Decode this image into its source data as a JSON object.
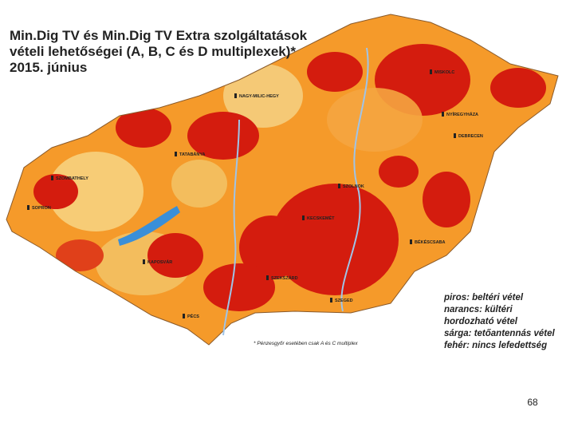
{
  "title": {
    "lines": [
      "Min.Dig TV és Min.Dig TV Extra szolgáltatások",
      "vételi lehetőségei (A, B, C és D multiplexek)*",
      "2015. június"
    ]
  },
  "cities": [
    "NAGY-MILIC-HEGY",
    "MISKOLC",
    "NYÍREGYHÁZA",
    "DEBRECEN",
    "SZOLNOK",
    "KECSKEMÉT",
    "SZEGED",
    "BÉKÉSCSABA",
    "SZOMBATHELY",
    "KAPOSVÁR",
    "PÉCS",
    "SOPRON",
    "TATABÁNYA",
    "SZEKSZÁRD"
  ],
  "legend": [
    "piros: beltéri vétel",
    "narancs: kültéri",
    "hordozható vétel",
    "sárga: tetőantennás vétel",
    "fehér: nincs lefedettség"
  ],
  "footnote": "* Pénzesgyőr esetében csak A és C multiplex",
  "page_number": "68"
}
